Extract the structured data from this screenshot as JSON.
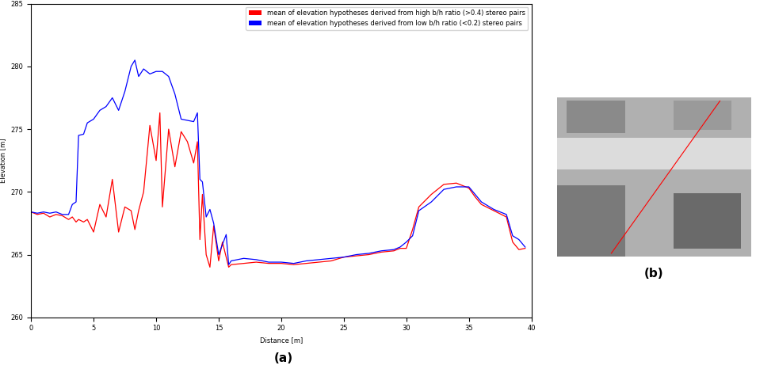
{
  "chart_data": {
    "type": "line",
    "x_label": "Distance [m]",
    "y_label": "Elevation [m]",
    "x": [
      0,
      0.5,
      1,
      1.5,
      2,
      2.5,
      3,
      3.3,
      3.6,
      3.8,
      4.2,
      4.5,
      5,
      5.5,
      6,
      6.5,
      7,
      7.5,
      8,
      8.3,
      8.6,
      9,
      9.5,
      10,
      10.3,
      10.5,
      11,
      11.5,
      12,
      12.5,
      13,
      13.3,
      13.5,
      13.7,
      14,
      14.3,
      14.6,
      15,
      15.3,
      15.6,
      15.8,
      16,
      17,
      18,
      19,
      20,
      21,
      22,
      23,
      24,
      25,
      26,
      27,
      28,
      29,
      29.5,
      30,
      30.5,
      31,
      32,
      33,
      34,
      35,
      35.5,
      36,
      37,
      38,
      38.5,
      39,
      39.5
    ],
    "series": [
      {
        "name": "mean of elevation hypotheses derived from high b/h ratio (>0.4) stereo pairs",
        "color": "#ff0000",
        "values": [
          268.4,
          268.2,
          268.3,
          268.0,
          268.2,
          268.1,
          267.8,
          268.0,
          267.6,
          267.8,
          267.6,
          267.8,
          266.8,
          269.0,
          268.0,
          271.0,
          266.8,
          268.8,
          268.5,
          267.0,
          268.5,
          270.0,
          275.3,
          272.5,
          276.3,
          268.8,
          275.0,
          272.0,
          274.8,
          274.0,
          272.3,
          274.0,
          266.2,
          269.8,
          265.0,
          264.0,
          267.3,
          264.5,
          266.0,
          264.8,
          264.0,
          264.2,
          264.3,
          264.4,
          264.3,
          264.3,
          264.2,
          264.3,
          264.4,
          264.5,
          264.8,
          264.9,
          265.0,
          265.2,
          265.3,
          265.5,
          265.5,
          267.0,
          268.8,
          269.8,
          270.6,
          270.7,
          270.3,
          269.6,
          269.0,
          268.5,
          268.0,
          266.0,
          265.4,
          265.5
        ]
      },
      {
        "name": "mean of elevation hypotheses derived from low b/h ratio (<0.2) stereo pairs",
        "color": "#0000ff",
        "values": [
          268.4,
          268.3,
          268.4,
          268.3,
          268.4,
          268.2,
          268.2,
          269.0,
          269.2,
          274.5,
          274.6,
          275.5,
          275.8,
          276.5,
          276.8,
          277.5,
          276.5,
          278.0,
          280.0,
          280.5,
          279.2,
          279.8,
          279.4,
          279.6,
          279.6,
          279.6,
          279.2,
          277.8,
          275.8,
          275.7,
          275.6,
          276.3,
          271.0,
          270.8,
          268.0,
          268.6,
          267.5,
          265.0,
          265.8,
          266.6,
          264.2,
          264.5,
          264.7,
          264.6,
          264.4,
          264.4,
          264.3,
          264.5,
          264.6,
          264.7,
          264.8,
          265.0,
          265.1,
          265.3,
          265.4,
          265.6,
          266.0,
          266.5,
          268.5,
          269.2,
          270.2,
          270.4,
          270.4,
          269.8,
          269.2,
          268.6,
          268.2,
          266.5,
          266.2,
          265.6
        ]
      }
    ],
    "xlim": [
      0,
      40
    ],
    "ylim": [
      260,
      285
    ],
    "xticks": [
      0,
      5,
      10,
      15,
      20,
      25,
      30,
      35,
      40
    ],
    "yticks": [
      260,
      265,
      270,
      275,
      280,
      285
    ],
    "legend": "upper right"
  },
  "panel_labels": [
    "(a)",
    "(b)"
  ]
}
